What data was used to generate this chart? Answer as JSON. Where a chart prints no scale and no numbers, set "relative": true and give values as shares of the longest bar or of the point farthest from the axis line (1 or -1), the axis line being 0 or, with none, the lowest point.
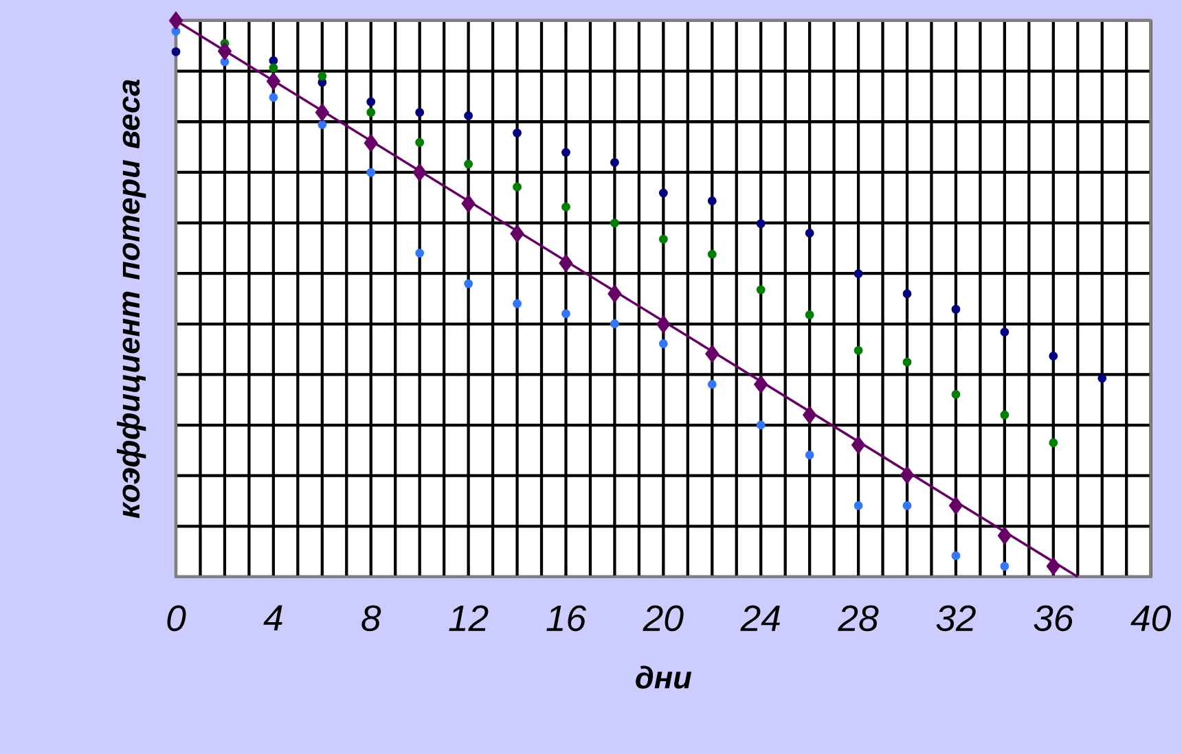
{
  "chart_data": {
    "type": "scatter",
    "relative": true,
    "xlabel": "дни",
    "ylabel": "коэффициент потери веса",
    "xlim": [
      0,
      40
    ],
    "xticks": [
      0,
      4,
      8,
      12,
      16,
      20,
      24,
      28,
      32,
      36,
      40
    ],
    "grid": true,
    "tick_labels": "x",
    "series": [
      {
        "color": "#000080",
        "marker": "circle",
        "x": [
          0,
          4,
          6,
          8,
          10,
          12,
          14,
          16,
          18,
          20,
          22,
          24,
          26,
          28,
          30,
          32,
          34,
          36,
          38
        ],
        "values": [
          0.944,
          0.928,
          0.889,
          0.854,
          0.835,
          0.829,
          0.798,
          0.763,
          0.745,
          0.69,
          0.676,
          0.635,
          0.618,
          0.545,
          0.509,
          0.481,
          0.44,
          0.397,
          0.357
        ]
      },
      {
        "color": "#008000",
        "marker": "circle",
        "x": [
          2,
          4,
          6,
          8,
          10,
          12,
          14,
          16,
          18,
          20,
          22,
          24,
          26,
          28,
          30,
          32,
          34,
          36
        ],
        "values": [
          0.959,
          0.915,
          0.9,
          0.835,
          0.781,
          0.742,
          0.701,
          0.665,
          0.636,
          0.607,
          0.58,
          0.516,
          0.471,
          0.407,
          0.386,
          0.328,
          0.291,
          0.241
        ]
      },
      {
        "color": "#3377ff",
        "marker": "circle",
        "x": [
          0,
          2,
          4,
          6,
          8,
          10,
          12,
          14,
          16,
          18,
          20,
          22,
          24,
          26,
          28,
          30,
          32,
          34
        ],
        "values": [
          0.981,
          0.926,
          0.862,
          0.813,
          0.727,
          0.582,
          0.527,
          0.491,
          0.473,
          0.455,
          0.419,
          0.346,
          0.273,
          0.219,
          0.128,
          0.128,
          0.038,
          0.019
        ]
      },
      {
        "color": "#660066",
        "marker": "diamond",
        "x": [
          0,
          2,
          4,
          6,
          8,
          10,
          12,
          14,
          16,
          18,
          20,
          22,
          24,
          26,
          28,
          30,
          32,
          34,
          36
        ],
        "values": [
          1.0,
          0.945,
          0.891,
          0.835,
          0.78,
          0.727,
          0.671,
          0.617,
          0.564,
          0.509,
          0.454,
          0.401,
          0.346,
          0.291,
          0.237,
          0.183,
          0.128,
          0.074,
          0.019
        ]
      },
      {
        "type": "line",
        "color": "#660066",
        "marker": "none",
        "line_style": "solid",
        "x": [
          0,
          37
        ],
        "values": [
          1.0,
          0
        ]
      }
    ]
  }
}
